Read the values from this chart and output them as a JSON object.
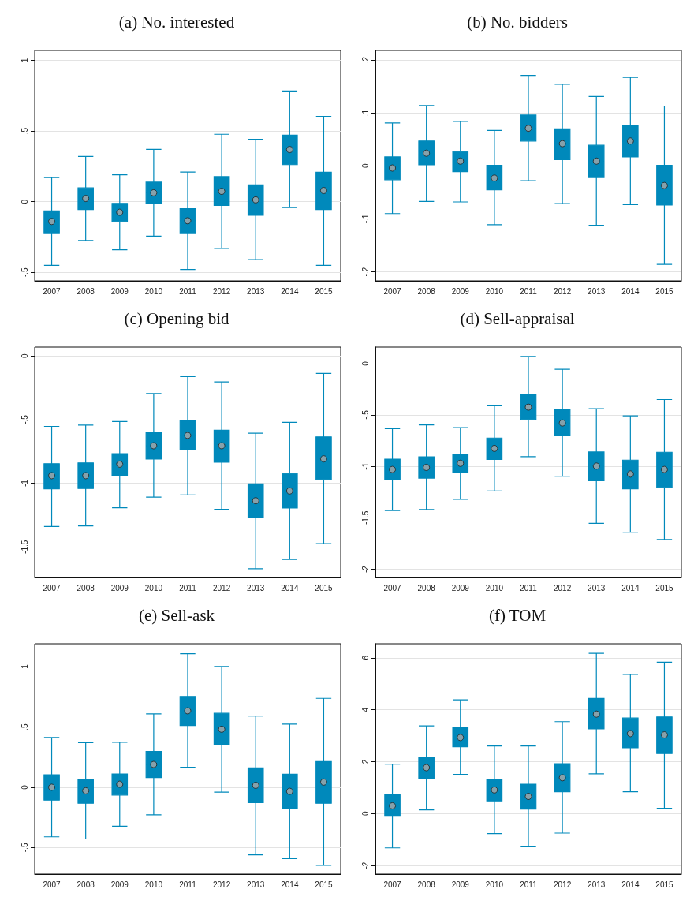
{
  "chart_data": [
    {
      "type": "box",
      "title": "(a) No. interested",
      "categories": [
        "2007",
        "2008",
        "2009",
        "2010",
        "2011",
        "2012",
        "2013",
        "2014",
        "2015"
      ],
      "color": "#0089bb",
      "marker": "circle",
      "grid": "y",
      "ylim": [
        -0.56,
        1.07
      ],
      "yticks": [
        {
          "value": -0.5,
          "label": "-.5"
        },
        0,
        {
          "value": 0.5,
          "label": ".5"
        },
        1
      ],
      "boxes": [
        {
          "low": -0.45,
          "q1": -0.22,
          "median": -0.14,
          "mean": -0.14,
          "q3": -0.065,
          "high": 0.17
        },
        {
          "low": -0.275,
          "q1": -0.056,
          "median": 0.023,
          "mean": 0.023,
          "q3": 0.098,
          "high": 0.32
        },
        {
          "low": -0.34,
          "q1": -0.14,
          "median": -0.075,
          "mean": -0.075,
          "q3": -0.012,
          "high": 0.19
        },
        {
          "low": -0.244,
          "q1": -0.015,
          "median": 0.063,
          "mean": 0.063,
          "q3": 0.138,
          "high": 0.37
        },
        {
          "low": -0.48,
          "q1": -0.22,
          "median": -0.135,
          "mean": -0.135,
          "q3": -0.05,
          "high": 0.21
        },
        {
          "low": -0.33,
          "q1": -0.027,
          "median": 0.073,
          "mean": 0.073,
          "q3": 0.177,
          "high": 0.477
        },
        {
          "low": -0.41,
          "q1": -0.096,
          "median": 0.013,
          "mean": 0.013,
          "q3": 0.119,
          "high": 0.442
        },
        {
          "low": -0.042,
          "q1": 0.262,
          "median": 0.369,
          "mean": 0.369,
          "q3": 0.471,
          "high": 0.783
        },
        {
          "low": -0.45,
          "q1": -0.056,
          "median": 0.079,
          "mean": 0.079,
          "q3": 0.208,
          "high": 0.604
        }
      ]
    },
    {
      "type": "box",
      "title": "(b) No. bidders",
      "categories": [
        "2007",
        "2008",
        "2009",
        "2010",
        "2011",
        "2012",
        "2013",
        "2014",
        "2015"
      ],
      "color": "#0089bb",
      "marker": "circle",
      "grid": "y",
      "ylim": [
        -0.217,
        0.218
      ],
      "yticks": [
        {
          "value": -0.2,
          "label": "-.2"
        },
        {
          "value": -0.1,
          "label": "-.1"
        },
        0,
        {
          "value": 0.1,
          "label": ".1"
        },
        {
          "value": 0.2,
          "label": ".2"
        }
      ],
      "boxes": [
        {
          "low": -0.09,
          "q1": -0.026,
          "median": -0.004,
          "mean": -0.004,
          "q3": 0.017,
          "high": 0.081
        },
        {
          "low": -0.067,
          "q1": 0.002,
          "median": 0.024,
          "mean": 0.024,
          "q3": 0.047,
          "high": 0.114
        },
        {
          "low": -0.068,
          "q1": -0.011,
          "median": 0.009,
          "mean": 0.009,
          "q3": 0.027,
          "high": 0.084
        },
        {
          "low": -0.111,
          "q1": -0.045,
          "median": -0.023,
          "mean": -0.023,
          "q3": 0.001,
          "high": 0.067
        },
        {
          "low": -0.028,
          "q1": 0.047,
          "median": 0.071,
          "mean": 0.071,
          "q3": 0.096,
          "high": 0.171
        },
        {
          "low": -0.071,
          "q1": 0.012,
          "median": 0.042,
          "mean": 0.042,
          "q3": 0.07,
          "high": 0.154
        },
        {
          "low": -0.112,
          "q1": -0.022,
          "median": 0.009,
          "mean": 0.009,
          "q3": 0.039,
          "high": 0.131
        },
        {
          "low": -0.073,
          "q1": 0.017,
          "median": 0.047,
          "mean": 0.047,
          "q3": 0.077,
          "high": 0.167
        },
        {
          "low": -0.186,
          "q1": -0.074,
          "median": -0.037,
          "mean": -0.037,
          "q3": 0.001,
          "high": 0.113
        }
      ]
    },
    {
      "type": "box",
      "title": "(c) Opening bid",
      "categories": [
        "2007",
        "2008",
        "2009",
        "2010",
        "2011",
        "2012",
        "2013",
        "2014",
        "2015"
      ],
      "color": "#0089bb",
      "marker": "circle",
      "grid": "y",
      "ylim": [
        -1.74,
        0.07
      ],
      "yticks": [
        {
          "value": -1.5,
          "label": "-1.5"
        },
        -1,
        {
          "value": -0.5,
          "label": "-.5"
        },
        0
      ],
      "boxes": [
        {
          "low": -1.34,
          "q1": -1.043,
          "median": -0.94,
          "mean": -0.94,
          "q3": -0.846,
          "high": -0.553
        },
        {
          "low": -1.335,
          "q1": -1.041,
          "median": -0.94,
          "mean": -0.94,
          "q3": -0.84,
          "high": -0.543
        },
        {
          "low": -1.192,
          "q1": -0.938,
          "median": -0.85,
          "mean": -0.85,
          "q3": -0.767,
          "high": -0.515
        },
        {
          "low": -1.109,
          "q1": -0.81,
          "median": -0.705,
          "mean": -0.705,
          "q3": -0.603,
          "high": -0.295
        },
        {
          "low": -1.092,
          "q1": -0.739,
          "median": -0.624,
          "mean": -0.624,
          "q3": -0.504,
          "high": -0.162
        },
        {
          "low": -1.205,
          "q1": -0.835,
          "median": -0.705,
          "mean": -0.705,
          "q3": -0.583,
          "high": -0.203
        },
        {
          "low": -1.671,
          "q1": -1.271,
          "median": -1.137,
          "mean": -1.137,
          "q3": -1.004,
          "high": -0.607
        },
        {
          "low": -1.598,
          "q1": -1.194,
          "median": -1.06,
          "mean": -1.06,
          "q3": -0.923,
          "high": -0.521
        },
        {
          "low": -1.474,
          "q1": -0.97,
          "median": -0.808,
          "mean": -0.808,
          "q3": -0.635,
          "high": -0.137
        }
      ]
    },
    {
      "type": "box",
      "title": "(d) Sell-appraisal",
      "categories": [
        "2007",
        "2008",
        "2009",
        "2010",
        "2011",
        "2012",
        "2013",
        "2014",
        "2015"
      ],
      "color": "#0089bb",
      "marker": "circle",
      "grid": "y",
      "ylim": [
        -2.08,
        0.16
      ],
      "yticks": [
        -2,
        {
          "value": -1.5,
          "label": "-1.5"
        },
        -1,
        {
          "value": -0.5,
          "label": "-.5"
        },
        0
      ],
      "boxes": [
        {
          "low": -1.43,
          "q1": -1.13,
          "median": -1.03,
          "mean": -1.03,
          "q3": -0.93,
          "high": -0.634
        },
        {
          "low": -1.42,
          "q1": -1.114,
          "median": -1.01,
          "mean": -1.01,
          "q3": -0.907,
          "high": -0.597
        },
        {
          "low": -1.32,
          "q1": -1.06,
          "median": -0.97,
          "mean": -0.97,
          "q3": -0.883,
          "high": -0.623
        },
        {
          "low": -1.239,
          "q1": -0.933,
          "median": -0.825,
          "mean": -0.825,
          "q3": -0.724,
          "high": -0.411
        },
        {
          "low": -0.905,
          "q1": -0.544,
          "median": -0.424,
          "mean": -0.424,
          "q3": -0.3,
          "high": 0.069
        },
        {
          "low": -1.095,
          "q1": -0.703,
          "median": -0.578,
          "mean": -0.578,
          "q3": -0.446,
          "high": -0.056
        },
        {
          "low": -1.554,
          "q1": -1.14,
          "median": -0.997,
          "mean": -0.997,
          "q3": -0.86,
          "high": -0.44
        },
        {
          "low": -1.64,
          "q1": -1.218,
          "median": -1.074,
          "mean": -1.074,
          "q3": -0.939,
          "high": -0.509
        },
        {
          "low": -1.71,
          "q1": -1.204,
          "median": -1.03,
          "mean": -1.03,
          "q3": -0.862,
          "high": -0.35
        }
      ]
    },
    {
      "type": "box",
      "title": "(e) Sell-ask",
      "categories": [
        "2007",
        "2008",
        "2009",
        "2010",
        "2011",
        "2012",
        "2013",
        "2014",
        "2015"
      ],
      "color": "#0089bb",
      "marker": "circle",
      "grid": "y",
      "ylim": [
        -0.72,
        1.19
      ],
      "yticks": [
        {
          "value": -0.5,
          "label": "-.5"
        },
        0,
        {
          "value": 0.5,
          "label": ".5"
        },
        1
      ],
      "boxes": [
        {
          "low": -0.411,
          "q1": -0.106,
          "median": 0,
          "mean": 0,
          "q3": 0.103,
          "high": 0.413
        },
        {
          "low": -0.429,
          "q1": -0.133,
          "median": -0.029,
          "mean": -0.029,
          "q3": 0.065,
          "high": 0.369
        },
        {
          "low": -0.324,
          "q1": -0.065,
          "median": 0.025,
          "mean": 0.025,
          "q3": 0.11,
          "high": 0.373
        },
        {
          "low": -0.229,
          "q1": 0.081,
          "median": 0.189,
          "mean": 0.189,
          "q3": 0.297,
          "high": 0.609
        },
        {
          "low": 0.166,
          "q1": 0.512,
          "median": 0.634,
          "mean": 0.634,
          "q3": 0.753,
          "high": 1.108
        },
        {
          "low": -0.04,
          "q1": 0.353,
          "median": 0.481,
          "mean": 0.481,
          "q3": 0.613,
          "high": 1.002
        },
        {
          "low": -0.56,
          "q1": -0.128,
          "median": 0.016,
          "mean": 0.016,
          "q3": 0.16,
          "high": 0.591
        },
        {
          "low": -0.591,
          "q1": -0.173,
          "median": -0.034,
          "mean": -0.034,
          "q3": 0.108,
          "high": 0.524
        },
        {
          "low": -0.647,
          "q1": -0.133,
          "median": 0.043,
          "mean": 0.043,
          "q3": 0.213,
          "high": 0.737
        }
      ]
    },
    {
      "type": "box",
      "title": "(f) TOM",
      "categories": [
        "2007",
        "2008",
        "2009",
        "2010",
        "2011",
        "2012",
        "2013",
        "2014",
        "2015"
      ],
      "color": "#0089bb",
      "marker": "circle",
      "grid": "y",
      "ylim": [
        -2.33,
        6.54
      ],
      "yticks": [
        -2,
        0,
        2,
        4,
        6
      ],
      "boxes": [
        {
          "low": -1.32,
          "q1": -0.1,
          "median": 0.3,
          "mean": 0.3,
          "q3": 0.72,
          "high": 1.906
        },
        {
          "low": 0.14,
          "q1": 1.36,
          "median": 1.77,
          "mean": 1.77,
          "q3": 2.17,
          "high": 3.38
        },
        {
          "low": 1.51,
          "q1": 2.57,
          "median": 2.93,
          "mean": 2.93,
          "q3": 3.31,
          "high": 4.38
        },
        {
          "low": -0.77,
          "q1": 0.49,
          "median": 0.91,
          "mean": 0.91,
          "q3": 1.32,
          "high": 2.6
        },
        {
          "low": -1.28,
          "q1": 0.17,
          "median": 0.66,
          "mean": 0.66,
          "q3": 1.13,
          "high": 2.6
        },
        {
          "low": -0.75,
          "q1": 0.84,
          "median": 1.38,
          "mean": 1.38,
          "q3": 1.92,
          "high": 3.54
        },
        {
          "low": 1.53,
          "q1": 3.26,
          "median": 3.83,
          "mean": 3.83,
          "q3": 4.43,
          "high": 6.17
        },
        {
          "low": 0.84,
          "q1": 2.53,
          "median": 3.08,
          "mean": 3.08,
          "q3": 3.68,
          "high": 5.36
        },
        {
          "low": 0.2,
          "q1": 2.31,
          "median": 3.03,
          "mean": 3.03,
          "q3": 3.72,
          "high": 5.83
        }
      ]
    }
  ]
}
